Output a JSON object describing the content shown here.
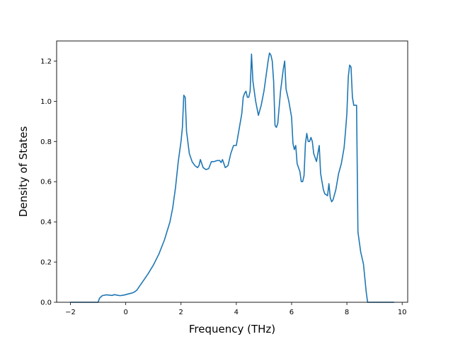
{
  "chart_data": {
    "type": "line",
    "xlabel": "Frequency (THz)",
    "ylabel": "Density of States",
    "xlim": [
      -2.5,
      10.2
    ],
    "ylim": [
      0,
      1.3
    ],
    "xticks": [
      -2,
      0,
      2,
      4,
      6,
      8,
      10
    ],
    "xtick_labels": [
      "−2",
      "0",
      "2",
      "4",
      "6",
      "8",
      "10"
    ],
    "yticks": [
      0.0,
      0.2,
      0.4,
      0.6,
      0.8,
      1.0,
      1.2
    ],
    "ytick_labels": [
      "0.0",
      "0.2",
      "0.4",
      "0.6",
      "0.8",
      "1.0",
      "1.2"
    ],
    "grid": false,
    "line_color": "#1f77b4",
    "series": [
      {
        "x": [
          -2.0,
          -1.5,
          -1.0,
          -0.95,
          -0.85,
          -0.7,
          -0.5,
          -0.4,
          -0.3,
          -0.2,
          -0.1,
          0.0,
          0.1,
          0.2,
          0.3,
          0.4,
          0.5,
          0.6,
          0.8,
          1.0,
          1.2,
          1.4,
          1.6,
          1.7,
          1.8,
          1.9,
          2.0,
          2.05,
          2.1,
          2.15,
          2.2,
          2.3,
          2.4,
          2.5,
          2.6,
          2.65,
          2.7,
          2.8,
          2.9,
          3.0,
          3.1,
          3.2,
          3.3,
          3.4,
          3.45,
          3.5,
          3.6,
          3.7,
          3.8,
          3.9,
          4.0,
          4.1,
          4.2,
          4.25,
          4.3,
          4.35,
          4.4,
          4.45,
          4.5,
          4.55,
          4.6,
          4.7,
          4.8,
          4.9,
          5.0,
          5.1,
          5.15,
          5.2,
          5.25,
          5.3,
          5.35,
          5.4,
          5.45,
          5.5,
          5.6,
          5.7,
          5.75,
          5.8,
          5.9,
          6.0,
          6.05,
          6.1,
          6.15,
          6.2,
          6.3,
          6.35,
          6.4,
          6.45,
          6.5,
          6.55,
          6.6,
          6.65,
          6.7,
          6.75,
          6.8,
          6.9,
          7.0,
          7.05,
          7.1,
          7.15,
          7.2,
          7.3,
          7.35,
          7.4,
          7.45,
          7.5,
          7.6,
          7.7,
          7.8,
          7.9,
          7.95,
          8.0,
          8.05,
          8.1,
          8.15,
          8.2,
          8.25,
          8.3,
          8.35,
          8.4,
          8.45,
          8.5,
          8.6,
          8.65,
          8.7,
          8.75,
          9.0,
          9.7
        ],
        "y": [
          0.0,
          0.0,
          0.0,
          0.02,
          0.033,
          0.037,
          0.034,
          0.038,
          0.035,
          0.033,
          0.035,
          0.038,
          0.042,
          0.045,
          0.05,
          0.06,
          0.08,
          0.1,
          0.14,
          0.185,
          0.24,
          0.31,
          0.4,
          0.47,
          0.57,
          0.7,
          0.8,
          0.87,
          1.03,
          1.02,
          0.85,
          0.74,
          0.7,
          0.68,
          0.67,
          0.68,
          0.71,
          0.67,
          0.66,
          0.665,
          0.7,
          0.7,
          0.705,
          0.705,
          0.695,
          0.71,
          0.67,
          0.68,
          0.74,
          0.78,
          0.78,
          0.86,
          0.94,
          1.02,
          1.04,
          1.05,
          1.02,
          1.02,
          1.05,
          1.235,
          1.1,
          1.0,
          0.93,
          0.98,
          1.05,
          1.15,
          1.2,
          1.24,
          1.23,
          1.2,
          1.1,
          0.88,
          0.87,
          0.89,
          1.05,
          1.16,
          1.2,
          1.06,
          1.0,
          0.92,
          0.79,
          0.76,
          0.78,
          0.69,
          0.65,
          0.6,
          0.6,
          0.63,
          0.79,
          0.84,
          0.8,
          0.8,
          0.82,
          0.8,
          0.74,
          0.7,
          0.78,
          0.64,
          0.6,
          0.56,
          0.54,
          0.53,
          0.59,
          0.52,
          0.5,
          0.51,
          0.56,
          0.64,
          0.69,
          0.77,
          0.85,
          0.94,
          1.12,
          1.18,
          1.17,
          1.02,
          0.98,
          0.98,
          0.98,
          0.35,
          0.3,
          0.25,
          0.19,
          0.12,
          0.05,
          0.0,
          0.0,
          0.0
        ]
      }
    ]
  }
}
